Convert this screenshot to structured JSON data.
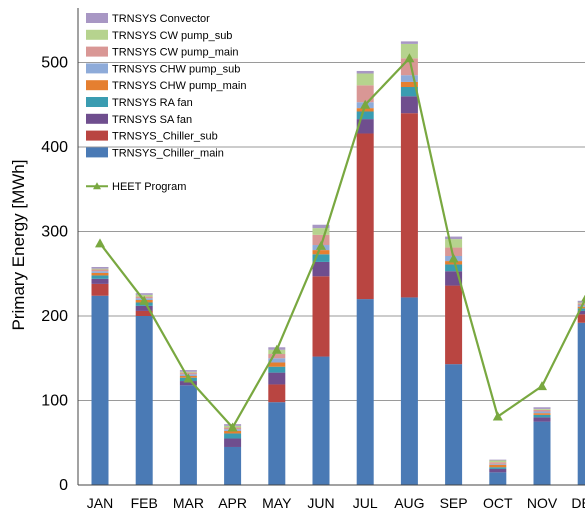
{
  "chart_data": {
    "type": "bar",
    "stacked": true,
    "title": "",
    "xlabel": "",
    "ylabel": "Primary Energy [MWh]",
    "ylim": [
      0,
      560
    ],
    "yticks": [
      0,
      100,
      200,
      300,
      400,
      500
    ],
    "grid": true,
    "legend_position": "top-left",
    "categories": [
      "JAN",
      "FEB",
      "MAR",
      "APR",
      "MAY",
      "JUN",
      "JUL",
      "AUG",
      "SEP",
      "OCT",
      "NOV",
      "DEC"
    ],
    "series": [
      {
        "name": "TRNSYS_Chiller_main",
        "color": "#4a7ab5",
        "values": [
          224,
          200,
          118,
          45,
          98,
          152,
          220,
          222,
          143,
          15,
          75,
          192
        ]
      },
      {
        "name": "TRNSYS_Chiller_sub",
        "color": "#b94541",
        "values": [
          14,
          6,
          0,
          0,
          21,
          95,
          196,
          218,
          93,
          0,
          0,
          10
        ]
      },
      {
        "name": "TRNSYS SA fan",
        "color": "#6f4e8e",
        "values": [
          6,
          6,
          5,
          10,
          14,
          17,
          17,
          20,
          17,
          4,
          5,
          4
        ]
      },
      {
        "name": "TRNSYS RA fan",
        "color": "#3a9cb1",
        "values": [
          4,
          4,
          4,
          6,
          7,
          9,
          9,
          11,
          8,
          2,
          3,
          3
        ]
      },
      {
        "name": "TRNSYS CHW pump_main",
        "color": "#e57f30",
        "values": [
          3,
          3,
          2,
          3,
          5,
          5,
          4,
          6,
          4,
          3,
          2,
          2
        ]
      },
      {
        "name": "TRNSYS CHW pump_sub",
        "color": "#8eabd9",
        "values": [
          2,
          2,
          2,
          2,
          5,
          6,
          7,
          8,
          6,
          1,
          2,
          2
        ]
      },
      {
        "name": "TRNSYS CW pump_main",
        "color": "#d99795",
        "values": [
          2,
          2,
          2,
          2,
          5,
          12,
          20,
          20,
          10,
          2,
          2,
          2
        ]
      },
      {
        "name": "TRNSYS CW pump_sub",
        "color": "#b6d38e",
        "values": [
          1,
          2,
          1,
          2,
          5,
          8,
          14,
          17,
          10,
          2,
          1,
          1
        ]
      },
      {
        "name": "TRNSYS Convector",
        "color": "#a897c4",
        "values": [
          2,
          2,
          2,
          2,
          3,
          4,
          3,
          3,
          3,
          1,
          2,
          2
        ]
      }
    ],
    "line_series": {
      "name": "HEET Program",
      "color": "#79a840",
      "values": [
        286,
        218,
        126,
        68,
        160,
        283,
        450,
        505,
        268,
        81,
        117,
        222
      ]
    },
    "legend_order": [
      "TRNSYS Convector",
      "TRNSYS CW pump_sub",
      "TRNSYS CW pump_main",
      "TRNSYS CHW pump_sub",
      "TRNSYS CHW pump_main",
      "TRNSYS RA fan",
      "TRNSYS SA fan",
      "TRNSYS_Chiller_sub",
      "TRNSYS_Chiller_main",
      "HEET Program"
    ]
  }
}
